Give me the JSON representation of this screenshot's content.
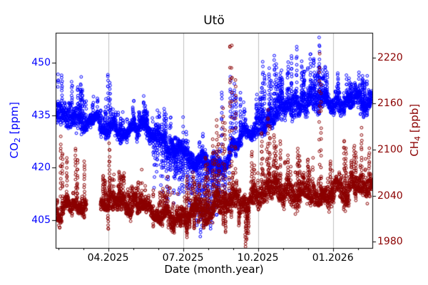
{
  "chart_data": {
    "type": "scatter",
    "title": "Utö",
    "xlabel": "Date (month.year)",
    "x_unit": "decimal_month_since_2025_01",
    "xlim": [
      1.9,
      14.58
    ],
    "x_major_ticks": [
      {
        "t": 4,
        "label": "04.2025"
      },
      {
        "t": 7,
        "label": "07.2025"
      },
      {
        "t": 10,
        "label": "10.2025"
      },
      {
        "t": 13,
        "label": "01.2026"
      }
    ],
    "x_minor_ticks": [
      2,
      3,
      5,
      6,
      8,
      9,
      11,
      12,
      14
    ],
    "grid": {
      "axis": "x",
      "color": "#b0b0b0",
      "width": 0.8
    },
    "marker": {
      "shape": "open-circle",
      "radius": 1.9,
      "stroke_width": 1
    },
    "axes": {
      "left": {
        "label_pre": "CO",
        "label_sub": "2",
        "label_post": " [ppm]",
        "color": "#0000ff",
        "lim": [
          397.05,
          458.55
        ],
        "ticks": [
          405,
          420,
          435,
          450
        ]
      },
      "right": {
        "label_pre": "CH",
        "label_sub": "4",
        "label_post": " [ppb]",
        "color": "#8b0000",
        "lim": [
          1972,
          2252
        ],
        "ticks": [
          1980,
          2040,
          2100,
          2160,
          2220
        ]
      }
    },
    "series": [
      {
        "name": "CO2",
        "axis": "left",
        "color": "#0000ff",
        "baseline": [
          [
            1.9,
            436.5
          ],
          [
            2.5,
            435
          ],
          [
            3,
            434
          ],
          [
            3.5,
            433
          ],
          [
            4,
            432.5
          ],
          [
            4.5,
            431
          ],
          [
            5,
            430.5
          ],
          [
            5.5,
            430
          ],
          [
            6,
            428
          ],
          [
            6.5,
            426
          ],
          [
            7,
            423.5
          ],
          [
            7.5,
            421
          ],
          [
            8,
            420.5
          ],
          [
            8.5,
            422
          ],
          [
            9,
            426
          ],
          [
            9.5,
            429
          ],
          [
            10,
            431
          ],
          [
            10.5,
            434
          ],
          [
            11,
            436.5
          ],
          [
            11.5,
            438
          ],
          [
            12,
            438.5
          ],
          [
            12.5,
            439
          ],
          [
            13,
            438
          ],
          [
            13.5,
            438
          ],
          [
            14,
            438.5
          ],
          [
            14.58,
            439
          ]
        ],
        "jitter_sigma": 1.7,
        "half_height": [
          0.9,
          3.0
        ],
        "tail": 4.5,
        "pts_per_day": 9,
        "wide_windows": [
          [
            1.9,
            3.15,
            2.2
          ],
          [
            9.9,
            12.6,
            2.6
          ],
          [
            13.0,
            14.58,
            1.2
          ]
        ],
        "gaps": [],
        "up_spikes": [
          [
            2.15,
            446.3
          ],
          [
            2.55,
            444.5
          ],
          [
            2.9,
            444
          ],
          [
            4.0,
            447
          ],
          [
            5.5,
            437.5
          ],
          [
            6.25,
            437
          ],
          [
            8.55,
            442
          ],
          [
            8.9,
            445.5
          ],
          [
            9.05,
            444
          ],
          [
            9.3,
            441
          ],
          [
            10.2,
            450
          ],
          [
            10.45,
            448
          ],
          [
            10.66,
            452.5
          ],
          [
            10.9,
            447
          ],
          [
            11.35,
            452
          ],
          [
            11.55,
            454.5
          ],
          [
            11.75,
            450
          ],
          [
            12.1,
            453
          ],
          [
            12.46,
            456.5
          ],
          [
            12.7,
            449
          ],
          [
            13.2,
            447
          ],
          [
            13.7,
            444
          ],
          [
            14.2,
            446
          ]
        ],
        "down_spikes": [
          [
            7.2,
            414
          ],
          [
            7.55,
            403
          ],
          [
            7.7,
            400
          ],
          [
            7.9,
            404
          ],
          [
            8.1,
            402
          ],
          [
            8.35,
            406
          ]
        ],
        "dip_window": {
          "range": [
            5.75,
            8.85
          ],
          "prob": 0.5,
          "max_depth": 17
        }
      },
      {
        "name": "CH4",
        "axis": "right",
        "color": "#8b0000",
        "baseline": [
          [
            1.9,
            2026
          ],
          [
            2.5,
            2028
          ],
          [
            3,
            2030
          ],
          [
            3.7,
            2035
          ],
          [
            4.1,
            2040
          ],
          [
            4.5,
            2034
          ],
          [
            5,
            2026
          ],
          [
            5.5,
            2020
          ],
          [
            6,
            2016
          ],
          [
            6.5,
            2012
          ],
          [
            7,
            2012
          ],
          [
            7.5,
            2017
          ],
          [
            8,
            2023
          ],
          [
            8.5,
            2027
          ],
          [
            9,
            2032
          ],
          [
            9.5,
            2024
          ],
          [
            10,
            2040
          ],
          [
            10.5,
            2048
          ],
          [
            11,
            2046
          ],
          [
            11.5,
            2044
          ],
          [
            12,
            2042
          ],
          [
            12.5,
            2045
          ],
          [
            13,
            2042
          ],
          [
            13.5,
            2046
          ],
          [
            14,
            2048
          ],
          [
            14.58,
            2052
          ]
        ],
        "jitter_sigma": 8,
        "half_height": [
          5,
          13
        ],
        "tail": 26,
        "pts_per_day": 9,
        "wide_windows": [
          [
            7.6,
            9.35,
            6
          ],
          [
            9.9,
            12.3,
            8
          ],
          [
            12.8,
            14.58,
            5
          ]
        ],
        "gaps": [
          [
            3.12,
            3.7
          ]
        ],
        "up_spikes": [
          [
            2.1,
            2114
          ],
          [
            2.35,
            2090
          ],
          [
            2.7,
            2104
          ],
          [
            3.05,
            2085
          ],
          [
            3.8,
            2067
          ],
          [
            4.05,
            2107
          ],
          [
            4.45,
            2072
          ],
          [
            5.2,
            2058
          ],
          [
            6.2,
            2048
          ],
          [
            7.15,
            2065
          ],
          [
            7.4,
            2070
          ],
          [
            7.9,
            2092
          ],
          [
            8.2,
            2112
          ],
          [
            8.35,
            2140
          ],
          [
            8.6,
            2157
          ],
          [
            8.88,
            2243
          ],
          [
            8.95,
            2228
          ],
          [
            9.1,
            2196
          ],
          [
            9.75,
            2098
          ],
          [
            10.15,
            2124
          ],
          [
            10.4,
            2150
          ],
          [
            10.65,
            2122
          ],
          [
            10.9,
            2110
          ],
          [
            11.2,
            2092
          ],
          [
            11.6,
            2102
          ],
          [
            12.0,
            2082
          ],
          [
            12.46,
            2223
          ],
          [
            12.9,
            2085
          ],
          [
            13.45,
            2114
          ],
          [
            13.85,
            2106
          ],
          [
            14.15,
            2126
          ],
          [
            14.45,
            2100
          ]
        ],
        "down_spikes": [
          [
            4.0,
            1996
          ],
          [
            6.9,
            2000
          ],
          [
            7.45,
            1997
          ],
          [
            8.7,
            1992
          ],
          [
            9.5,
            1975
          ],
          [
            9.55,
            1983
          ]
        ],
        "dip_window": {
          "range": [
            6.3,
            9.6
          ],
          "prob": 0.12,
          "max_depth": 16
        }
      }
    ]
  }
}
